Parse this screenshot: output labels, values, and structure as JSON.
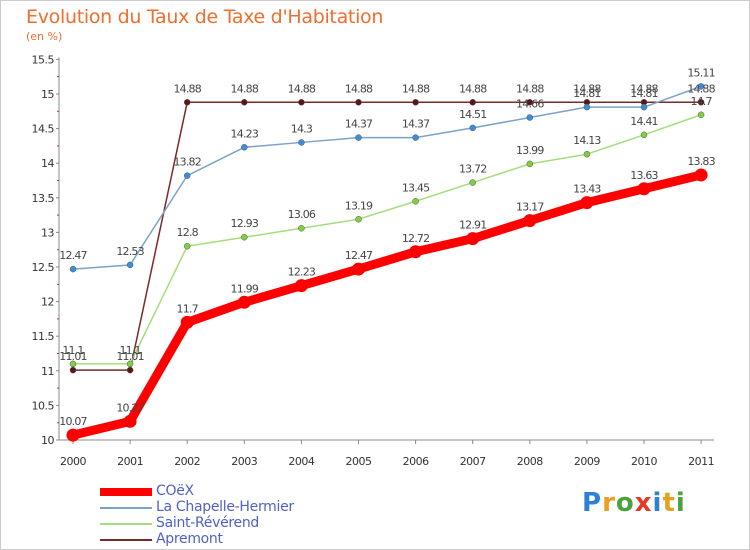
{
  "page": {
    "title": "Evolution du Taux de Taxe d'Habitation",
    "unit": "(en %)"
  },
  "brand": {
    "text": "Proxiti",
    "letters": [
      {
        "ch": "P",
        "color": "#2e7fd6"
      },
      {
        "ch": "r",
        "color": "#e8a020"
      },
      {
        "ch": "o",
        "color": "#4aa33a"
      },
      {
        "ch": "x",
        "color": "#e23a2a"
      },
      {
        "ch": "i",
        "color": "#2e7fd6"
      },
      {
        "ch": "t",
        "color": "#e8a020"
      },
      {
        "ch": "i",
        "color": "#4aa33a"
      }
    ]
  },
  "chart_data": {
    "type": "line",
    "title": "Evolution du Taux de Taxe d'Habitation",
    "ylabel": "(en %)",
    "xlabel": "",
    "x": [
      "2000",
      "2001",
      "2002",
      "2003",
      "2004",
      "2005",
      "2006",
      "2007",
      "2008",
      "2009",
      "2010",
      "2011"
    ],
    "ylim": [
      10,
      15.5
    ],
    "yticks": [
      "10",
      "10.5",
      "11",
      "11.5",
      "12",
      "12.5",
      "13",
      "13.5",
      "14",
      "14.5",
      "15",
      "15.5"
    ],
    "grid": false,
    "legend": "bottom-left",
    "series": [
      {
        "name": "COëX",
        "color": "#ff0000",
        "marker_color": "#ff0000",
        "values": [
          10.07,
          10.27,
          11.7,
          11.99,
          12.23,
          12.47,
          12.72,
          12.91,
          13.17,
          13.43,
          13.63,
          13.83
        ],
        "labels": [
          "10.07",
          "10.27",
          "11.7",
          "11.99",
          "12.23",
          "12.47",
          "12.72",
          "12.91",
          "13.17",
          "13.43",
          "13.63",
          "13.83"
        ]
      },
      {
        "name": "La Chapelle-Hermier",
        "color": "#7ba2cc",
        "marker_color": "#3c8ed8",
        "values": [
          12.47,
          12.53,
          13.82,
          14.23,
          14.3,
          14.37,
          14.37,
          14.51,
          14.66,
          14.81,
          14.81,
          15.11
        ],
        "labels": [
          "12.47",
          "12.53",
          "13.82",
          "14.23",
          "14.3",
          "14.37",
          "14.37",
          "14.51",
          "14.66",
          "14.81",
          "14.81",
          "15.11"
        ]
      },
      {
        "name": "Saint-Révérend",
        "color": "#a6dd7c",
        "marker_color": "#7ed03f",
        "values": [
          11.1,
          11.1,
          12.8,
          12.93,
          13.06,
          13.19,
          13.45,
          13.72,
          13.99,
          14.13,
          14.41,
          14.7
        ],
        "labels": [
          "11.1",
          "11.1",
          "12.8",
          "12.93",
          "13.06",
          "13.19",
          "13.45",
          "13.72",
          "13.99",
          "14.13",
          "14.41",
          "14.7"
        ]
      },
      {
        "name": "Apremont",
        "color": "#7a2a2a",
        "marker_color": "#5a1616",
        "values": [
          11.01,
          11.01,
          14.88,
          14.88,
          14.88,
          14.88,
          14.88,
          14.88,
          14.88,
          14.88,
          14.88,
          14.88
        ],
        "labels": [
          "11.01",
          "11.01",
          "14.88",
          "14.88",
          "14.88",
          "14.88",
          "14.88",
          "14.88",
          "14.88",
          "14.88",
          "14.88",
          "14.88"
        ]
      }
    ]
  }
}
